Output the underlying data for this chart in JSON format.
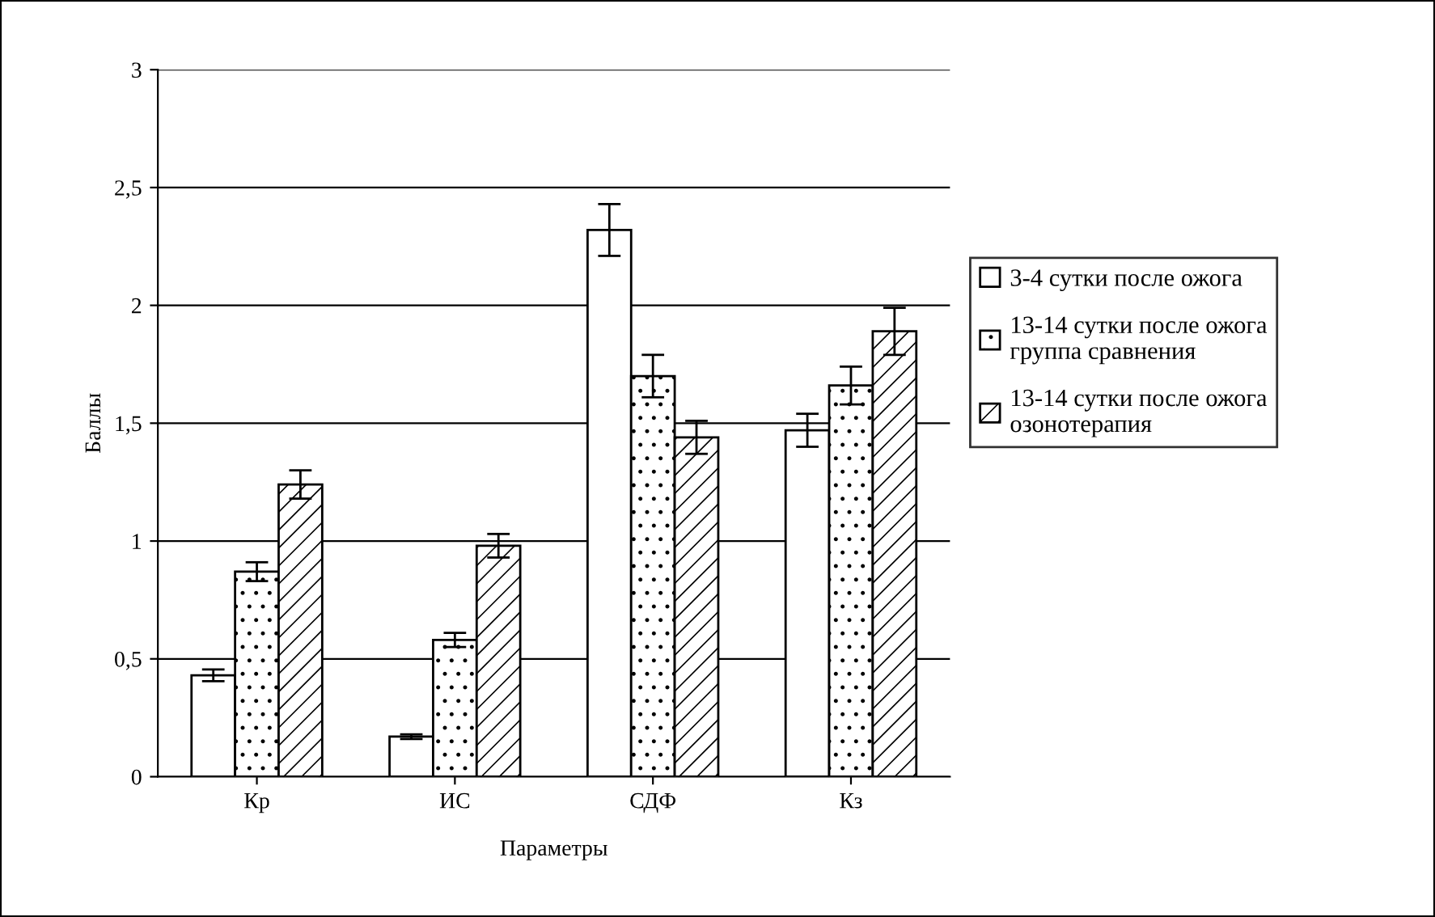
{
  "chart_data": {
    "type": "bar",
    "xlabel": "Параметры",
    "ylabel": "Баллы",
    "categories": [
      "Кр",
      "ИС",
      "СДФ",
      "Кз"
    ],
    "series": [
      {
        "name": "3-4 сутки после ожога",
        "color": "#ffffff",
        "values": [
          0.43,
          0.17,
          2.32,
          1.47
        ],
        "errors": [
          0.025,
          0.01,
          0.11,
          0.07
        ]
      },
      {
        "name": "13-14 сутки после ожога\nгруппа сравнения",
        "color": "#000000",
        "values": [
          0.87,
          0.58,
          1.7,
          1.66
        ],
        "errors": [
          0.04,
          0.03,
          0.09,
          0.08
        ]
      },
      {
        "name": "13-14 сутки после ожога\nозонотерапия",
        "color": "#000000",
        "values": [
          1.24,
          0.98,
          1.44,
          1.89
        ],
        "errors": [
          0.06,
          0.05,
          0.07,
          0.1
        ]
      }
    ],
    "ylim": [
      0,
      3
    ],
    "yticks": [
      0,
      {
        "value": 0.5,
        "label": "0,5"
      },
      1,
      {
        "value": 1.5,
        "label": "1,5"
      },
      2,
      {
        "value": 2.5,
        "label": "2,5"
      },
      3
    ],
    "grid": "y",
    "legend": "right"
  }
}
